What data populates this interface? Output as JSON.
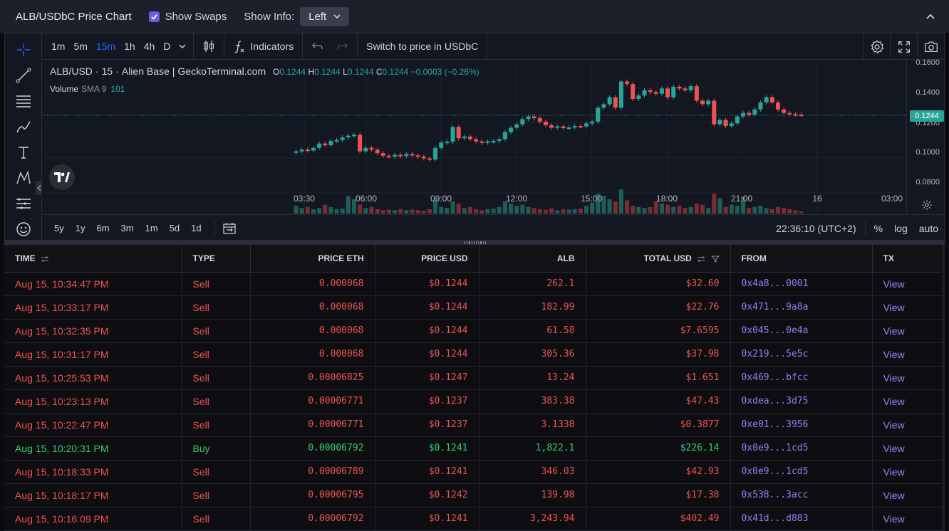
{
  "header": {
    "title": "ALB/USDbC Price Chart",
    "show_swaps_label": "Show Swaps",
    "show_info_label": "Show Info:",
    "show_info_value": "Left"
  },
  "toolbar": {
    "intervals": [
      "1m",
      "5m",
      "15m",
      "1h",
      "4h",
      "D"
    ],
    "active_interval": "15m",
    "indicators_label": "Indicators",
    "switch_price_label": "Switch to price in USDbC"
  },
  "legend": {
    "symbol": "ALB/USD",
    "interval": "15",
    "exchange": "Alien Base",
    "source": "GeckoTerminal.com",
    "o_label": "O",
    "o": "0.1244",
    "h_label": "H",
    "h": "0.1244",
    "l_label": "L",
    "l": "0.1244",
    "c_label": "C",
    "c": "0.1244",
    "change": "−0.0003 (−0.26%)",
    "volume_label": "Volume",
    "sma_label": "SMA 9",
    "volume_value": "101"
  },
  "chart_data": {
    "type": "candlestick",
    "y_ticks": [
      "0.1600",
      "0.1400",
      "0.1200",
      "0.1000",
      "0.0800"
    ],
    "y_range": [
      0.072,
      0.16
    ],
    "last_price": "0.1244",
    "x_ticks": [
      "03:30",
      "06:00",
      "09:00",
      "12:00",
      "15:00",
      "18:00",
      "21:00",
      "16",
      "03:00"
    ],
    "colors": {
      "up": "#26a69a",
      "down": "#ef5350"
    },
    "close_series": [
      0.1035,
      0.1045,
      0.104,
      0.1055,
      0.108,
      0.107,
      0.1095,
      0.11,
      0.1115,
      0.1125,
      0.113,
      0.1035,
      0.1055,
      0.1045,
      0.1025,
      0.101,
      0.1005,
      0.1015,
      0.1008,
      0.102,
      0.1012,
      0.1005,
      0.0995,
      0.0988,
      0.1055,
      0.1085,
      0.109,
      0.1175,
      0.111,
      0.112,
      0.1105,
      0.1092,
      0.1085,
      0.1092,
      0.1095,
      0.1105,
      0.1145,
      0.117,
      0.119,
      0.122,
      0.1235,
      0.1225,
      0.1205,
      0.1185,
      0.117,
      0.1178,
      0.1168,
      0.1172,
      0.118,
      0.1178,
      0.1195,
      0.1205,
      0.1285,
      0.1305,
      0.1345,
      0.1285,
      0.1435,
      0.142,
      0.1335,
      0.1355,
      0.1385,
      0.1375,
      0.1365,
      0.1395,
      0.1345,
      0.1405,
      0.1395,
      0.1385,
      0.1408,
      0.1325,
      0.1305,
      0.1325,
      0.119,
      0.1215,
      0.118,
      0.1195,
      0.1235,
      0.1255,
      0.1245,
      0.1275,
      0.1315,
      0.1345,
      0.1315,
      0.1275,
      0.1255,
      0.1248,
      0.1245,
      0.1244
    ],
    "volume_series": [
      14,
      10,
      12,
      8,
      10,
      16,
      12,
      8,
      9,
      32,
      26,
      16,
      10,
      12,
      8,
      6,
      7,
      6,
      8,
      6,
      7,
      6,
      5,
      8,
      26,
      12,
      10,
      22,
      18,
      10,
      12,
      8,
      6,
      8,
      9,
      12,
      22,
      18,
      14,
      16,
      12,
      10,
      8,
      7,
      9,
      6,
      8,
      7,
      8,
      9,
      14,
      20,
      36,
      32,
      26,
      22,
      44,
      24,
      14,
      12,
      10,
      12,
      22,
      18,
      16,
      12,
      14,
      10,
      12,
      18,
      16,
      10,
      36,
      28,
      12,
      16,
      14,
      30,
      10,
      12,
      14,
      10,
      8,
      12,
      10,
      8,
      6,
      4
    ]
  },
  "ranges": [
    "5y",
    "1y",
    "6m",
    "3m",
    "1m",
    "5d",
    "1d"
  ],
  "status": {
    "time": "22:36:10 (UTC+2)",
    "percent": "%",
    "log": "log",
    "auto": "auto"
  },
  "table": {
    "headers": {
      "time": "TIME",
      "type": "TYPE",
      "price_eth": "PRICE ETH",
      "price_usd": "PRICE USD",
      "alb": "ALB",
      "total_usd": "TOTAL USD",
      "from": "FROM",
      "tx": "TX"
    },
    "rows": [
      {
        "time": "Aug 15, 10:34:47 PM",
        "type": "Sell",
        "price_eth": "0.000068",
        "price_usd": "$0.1244",
        "alb": "262.1",
        "total_usd": "$32.60",
        "from": "0x4a8...0001",
        "tx": "View"
      },
      {
        "time": "Aug 15, 10:33:17 PM",
        "type": "Sell",
        "price_eth": "0.000068",
        "price_usd": "$0.1244",
        "alb": "182.99",
        "total_usd": "$22.76",
        "from": "0x471...9a8a",
        "tx": "View"
      },
      {
        "time": "Aug 15, 10:32:35 PM",
        "type": "Sell",
        "price_eth": "0.000068",
        "price_usd": "$0.1244",
        "alb": "61.58",
        "total_usd": "$7.6595",
        "from": "0x045...0e4a",
        "tx": "View"
      },
      {
        "time": "Aug 15, 10:31:17 PM",
        "type": "Sell",
        "price_eth": "0.000068",
        "price_usd": "$0.1244",
        "alb": "305.36",
        "total_usd": "$37.98",
        "from": "0x219...5e5c",
        "tx": "View"
      },
      {
        "time": "Aug 15, 10:25:53 PM",
        "type": "Sell",
        "price_eth": "0.00006825",
        "price_usd": "$0.1247",
        "alb": "13.24",
        "total_usd": "$1.651",
        "from": "0x469...bfcc",
        "tx": "View"
      },
      {
        "time": "Aug 15, 10:23:13 PM",
        "type": "Sell",
        "price_eth": "0.00006771",
        "price_usd": "$0.1237",
        "alb": "383.38",
        "total_usd": "$47.43",
        "from": "0xdea...3d75",
        "tx": "View"
      },
      {
        "time": "Aug 15, 10:22:47 PM",
        "type": "Sell",
        "price_eth": "0.00006771",
        "price_usd": "$0.1237",
        "alb": "3.1338",
        "total_usd": "$0.3877",
        "from": "0xe01...3956",
        "tx": "View"
      },
      {
        "time": "Aug 15, 10:20:31 PM",
        "type": "Buy",
        "price_eth": "0.00006792",
        "price_usd": "$0.1241",
        "alb": "1,822.1",
        "total_usd": "$226.14",
        "from": "0x0e9...1cd5",
        "tx": "View"
      },
      {
        "time": "Aug 15, 10:18:33 PM",
        "type": "Sell",
        "price_eth": "0.00006789",
        "price_usd": "$0.1241",
        "alb": "346.03",
        "total_usd": "$42.93",
        "from": "0x0e9...1cd5",
        "tx": "View"
      },
      {
        "time": "Aug 15, 10:18:17 PM",
        "type": "Sell",
        "price_eth": "0.00006795",
        "price_usd": "$0.1242",
        "alb": "139.98",
        "total_usd": "$17.38",
        "from": "0x538...3acc",
        "tx": "View"
      },
      {
        "time": "Aug 15, 10:16:09 PM",
        "type": "Sell",
        "price_eth": "0.00006792",
        "price_usd": "$0.1241",
        "alb": "3,243.94",
        "total_usd": "$402.49",
        "from": "0x41d...d883",
        "tx": "View"
      }
    ]
  }
}
